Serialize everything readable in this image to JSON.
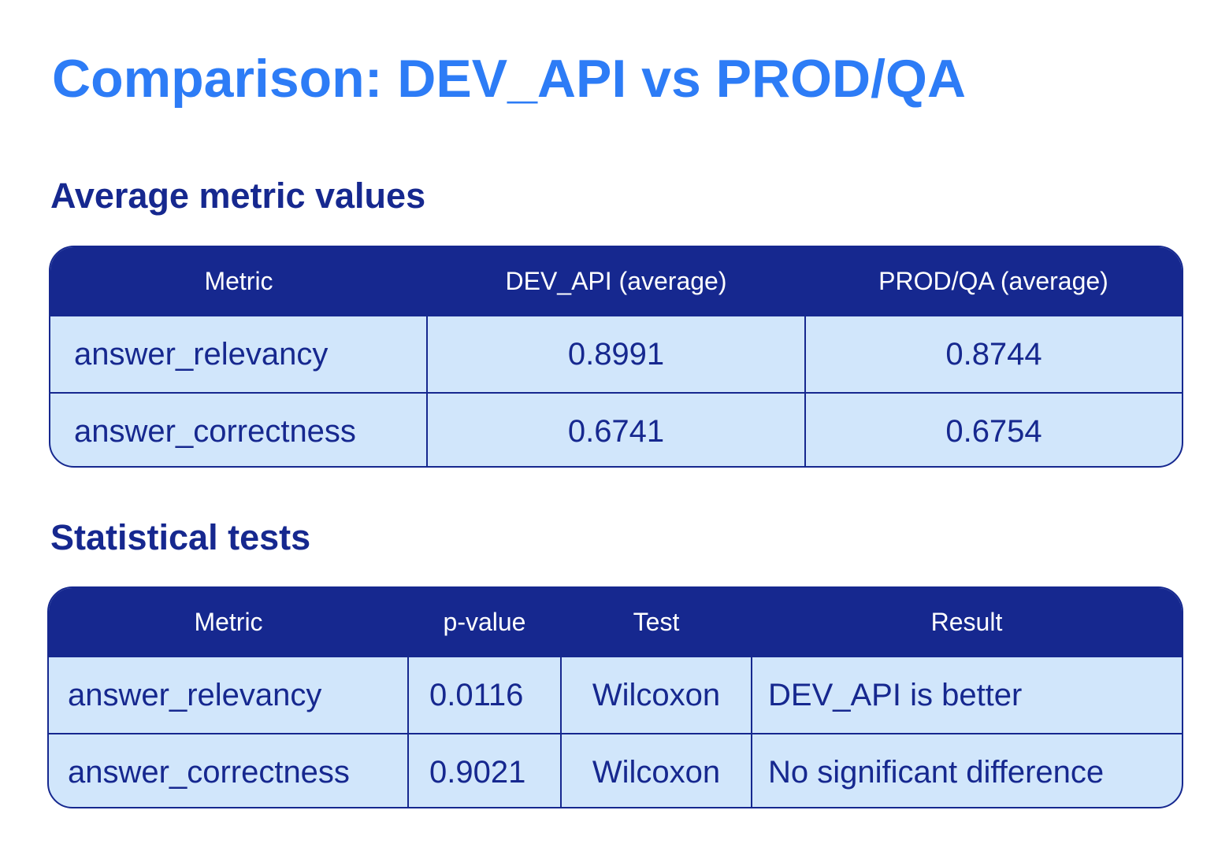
{
  "title": "Comparison: DEV_API vs PROD/QA",
  "average_section": {
    "heading": "Average metric values",
    "columns": [
      "Metric",
      "DEV_API (average)",
      "PROD/QA (average)"
    ],
    "rows": [
      {
        "metric": "answer_relevancy",
        "dev_api": "0.8991",
        "prod_qa": "0.8744"
      },
      {
        "metric": "answer_correctness",
        "dev_api": "0.6741",
        "prod_qa": "0.6754"
      }
    ]
  },
  "stats_section": {
    "heading": "Statistical tests",
    "columns": [
      "Metric",
      "p-value",
      "Test",
      "Result"
    ],
    "rows": [
      {
        "metric": "answer_relevancy",
        "p_value": "0.0116",
        "test": "Wilcoxon",
        "result": "DEV_API is better"
      },
      {
        "metric": "answer_correctness",
        "p_value": "0.9021",
        "test": "Wilcoxon",
        "result": "No significant difference"
      }
    ]
  },
  "colors": {
    "title": "#2d7cf6",
    "heading": "#16288f",
    "header_bg": "#16288f",
    "cell_bg": "#d1e6fb"
  }
}
